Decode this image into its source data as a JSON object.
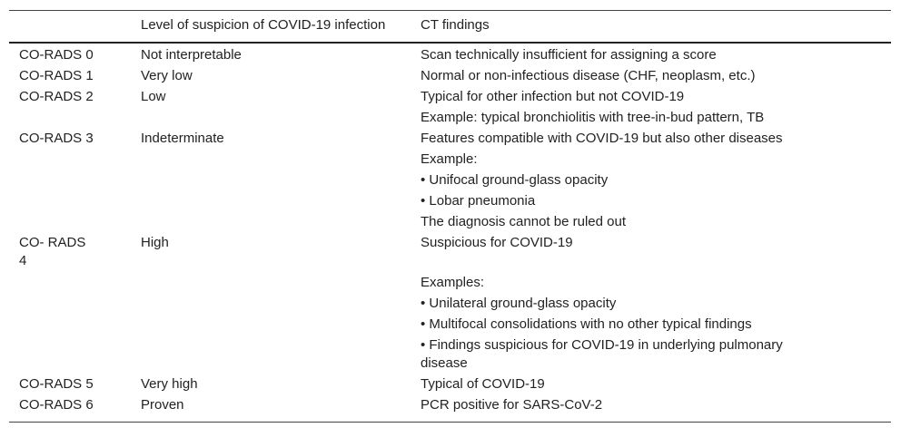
{
  "table": {
    "header": {
      "level": "Level of suspicion of COVID-19 infection",
      "findings": "CT findings"
    },
    "rows": [
      {
        "code": "CO-RADS 0",
        "level": "Not interpretable",
        "findings": [
          "Scan technically insufficient for assigning a score"
        ]
      },
      {
        "code": "CO-RADS 1",
        "level": "Very low",
        "findings": [
          "Normal or non-infectious disease (CHF, neoplasm, etc.)"
        ]
      },
      {
        "code": "CO-RADS 2",
        "level": "Low",
        "findings": [
          "Typical for other infection but not COVID-19",
          "Example: typical bronchiolitis with tree-in-bud pattern, TB"
        ]
      },
      {
        "code": "CO-RADS 3",
        "level": "Indeterminate",
        "findings": [
          "Features compatible with COVID-19 but also other diseases",
          "Example:",
          "• Unifocal ground-glass opacity",
          "• Lobar pneumonia",
          "The diagnosis cannot be ruled out"
        ]
      },
      {
        "code": "CO- RADS 4",
        "level": "High",
        "findings": [
          "Suspicious for COVID-19",
          "Examples:",
          "• Unilateral ground-glass opacity",
          "• Multifocal consolidations with no other typical findings",
          "• Findings suspicious for COVID-19 in underlying pulmonary disease"
        ]
      },
      {
        "code": "CO-RADS 5",
        "level": "Very high",
        "findings": [
          "Typical of COVID-19"
        ]
      },
      {
        "code": "CO-RADS 6",
        "level": "Proven",
        "findings": [
          "PCR positive for SARS-CoV-2"
        ]
      }
    ]
  }
}
